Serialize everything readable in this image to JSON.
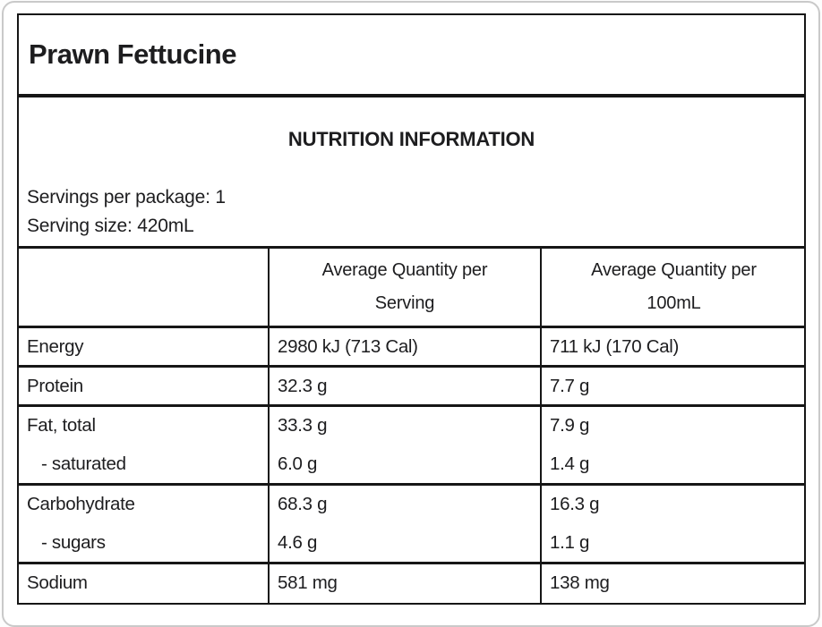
{
  "product_title": "Prawn Fettucine",
  "nutrition_label": {
    "heading": "NUTRITION INFORMATION",
    "servings_per_package": "Servings per package: 1",
    "serving_size": "Serving size: 420mL",
    "table": {
      "column_headers": {
        "per_serving_line1": "Average Quantity per",
        "per_serving_line2": "Serving",
        "per_100ml_line1": "Average Quantity per",
        "per_100ml_line2": "100mL"
      },
      "rows": [
        {
          "nutrient": "Energy",
          "per_serving": "2980 kJ (713 Cal)",
          "per_100ml": "711 kJ (170 Cal)",
          "is_sub_item": false
        },
        {
          "nutrient": "Protein",
          "per_serving": "32.3 g",
          "per_100ml": "7.7 g",
          "is_sub_item": false
        },
        {
          "nutrient": "Fat, total",
          "per_serving": "33.3 g",
          "per_100ml": "7.9 g",
          "is_sub_item": false
        },
        {
          "nutrient": "- saturated",
          "per_serving": "6.0 g",
          "per_100ml": "1.4 g",
          "is_sub_item": true
        },
        {
          "nutrient": "Carbohydrate",
          "per_serving": "68.3 g",
          "per_100ml": "16.3 g",
          "is_sub_item": false
        },
        {
          "nutrient": "- sugars",
          "per_serving": "4.6 g",
          "per_100ml": "1.1 g",
          "is_sub_item": true
        },
        {
          "nutrient": "Sodium",
          "per_serving": "581 mg",
          "per_100ml": "138 mg",
          "is_sub_item": false
        }
      ]
    }
  },
  "colors": {
    "label_border": "#161616",
    "card_border": "#c9c9c9",
    "text": "#1d1d1f",
    "background": "#ffffff"
  }
}
